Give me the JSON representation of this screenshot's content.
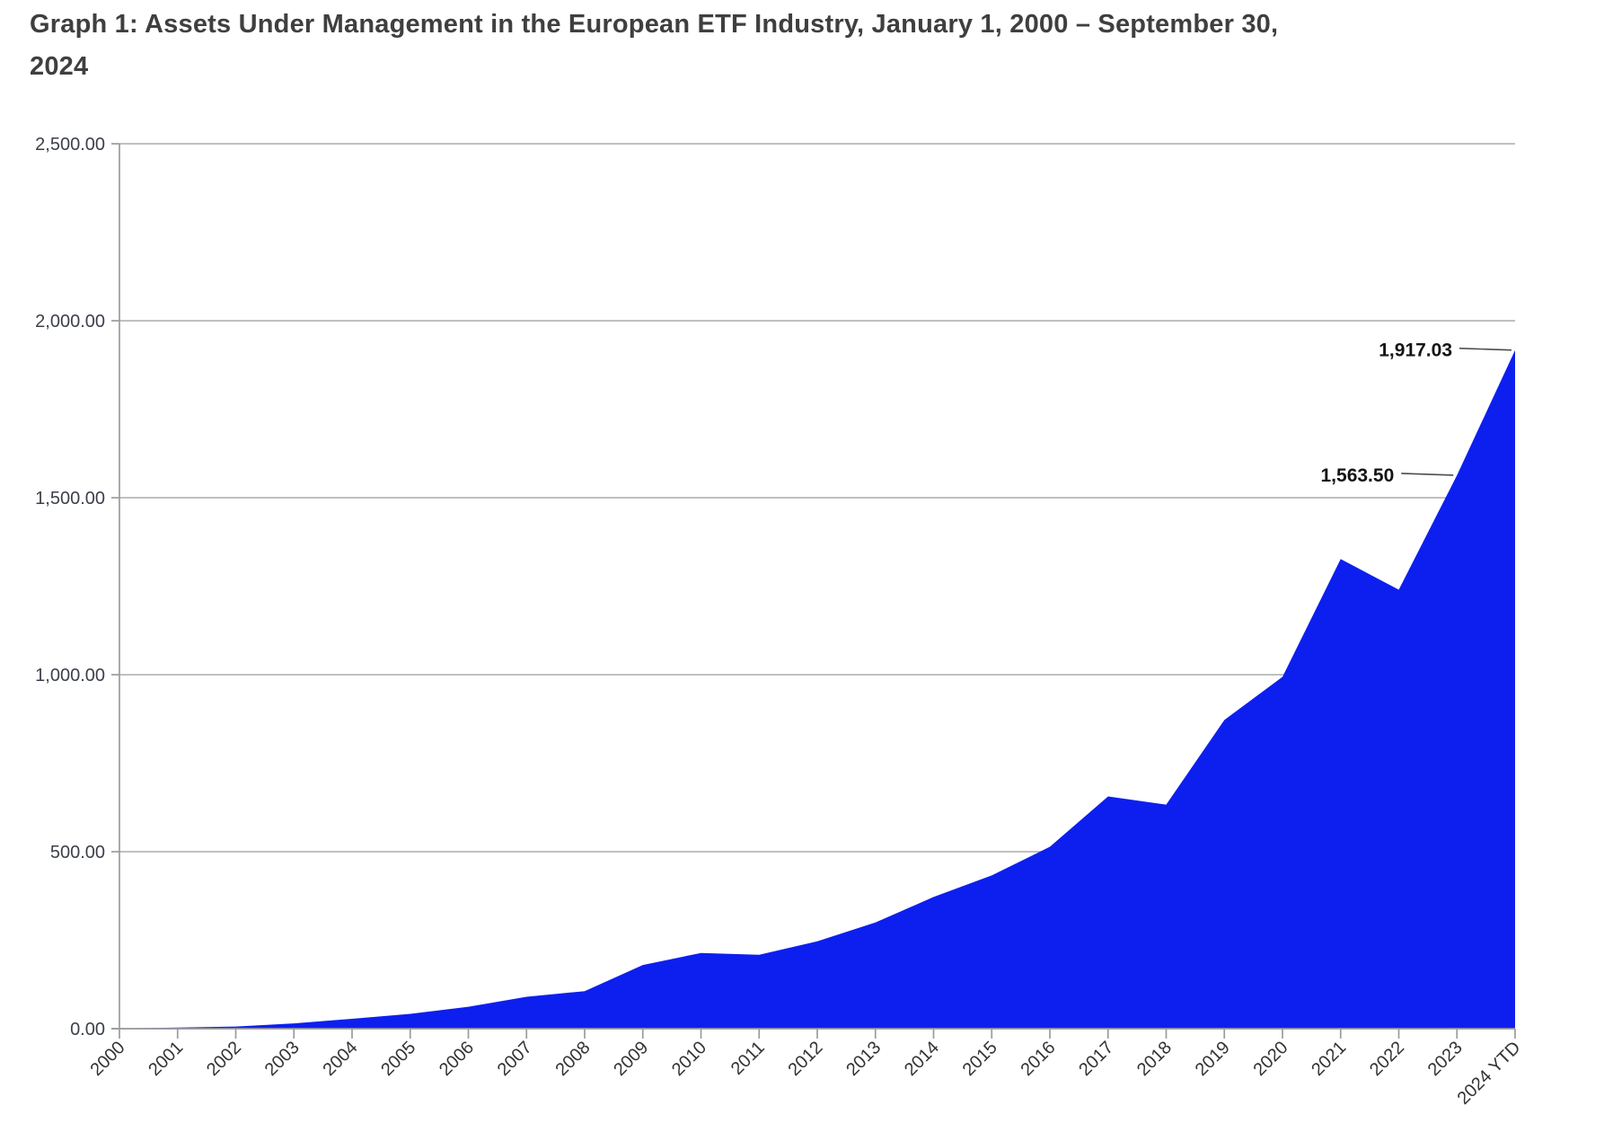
{
  "page": {
    "title_line1": "Graph 1: Assets Under Management in the European ETF Industry, January 1, 2000 – September 30,",
    "title_line2": "2024"
  },
  "chart_data": {
    "type": "area",
    "title": "Graph 1: Assets Under Management in the European ETF Industry, January 1, 2000 – September 30, 2024",
    "series_name": "Assets Under Management (EUR bn)",
    "categories": [
      "2000",
      "2001",
      "2002",
      "2003",
      "2004",
      "2005",
      "2006",
      "2007",
      "2008",
      "2009",
      "2010",
      "2011",
      "2012",
      "2013",
      "2014",
      "2015",
      "2016",
      "2017",
      "2018",
      "2019",
      "2020",
      "2021",
      "2022",
      "2023",
      "2024 YTD"
    ],
    "values": [
      0.7,
      3,
      6,
      15,
      28,
      42,
      62,
      90,
      106,
      180,
      214,
      209,
      247,
      300,
      372,
      433,
      514,
      656,
      633,
      872,
      994,
      1327,
      1240,
      1563.5,
      1917.03
    ],
    "xlabel": "",
    "ylabel": "",
    "ylim": [
      0,
      2500
    ],
    "y_tick_step": 500,
    "y_tick_labels": [
      "0.00",
      "500.00",
      "1,000.00",
      "1,500.00",
      "2,000.00",
      "2,500.00"
    ],
    "grid": true,
    "legend": "none",
    "series_color": "#0d1fee",
    "grid_color": "#ababab",
    "axis_color": "#9b9b9b",
    "callouts": [
      {
        "category": "2023",
        "label": "1,563.50"
      },
      {
        "category": "2024 YTD",
        "label": "1,917.03"
      }
    ]
  }
}
